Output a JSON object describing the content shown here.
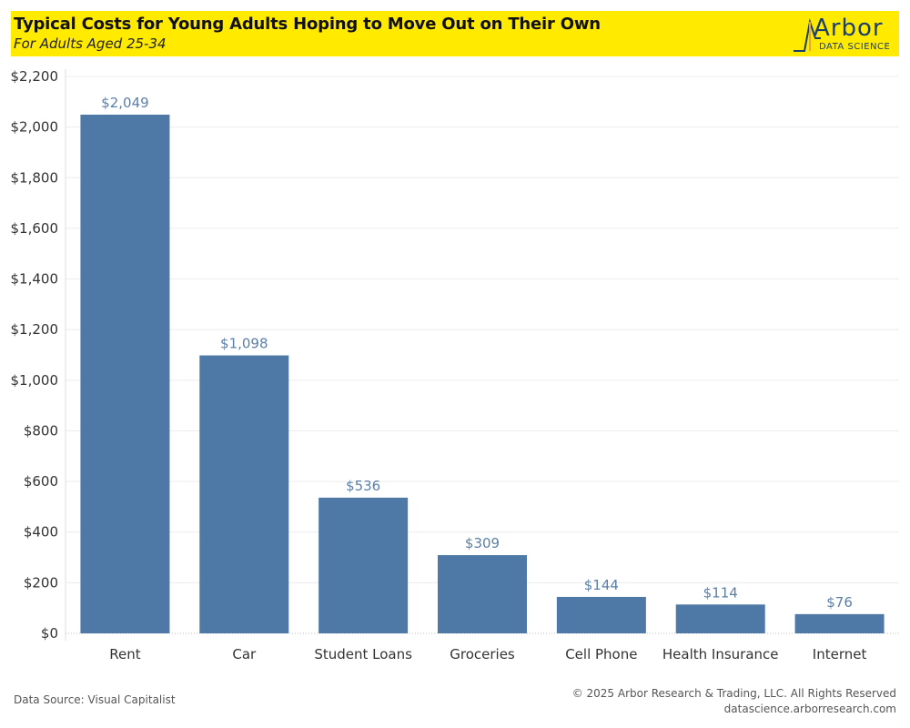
{
  "header": {
    "title": "Typical Costs for Young Adults Hoping to Move Out on Their Own",
    "subtitle": "For Adults Aged 25-34",
    "banner_color": "#ffea00"
  },
  "logo": {
    "word": "Arbor",
    "tagline": "DATA SCIENCE",
    "color": "#1a3f6b",
    "accent": "#e3a63a"
  },
  "chart_data": {
    "type": "bar",
    "title": "Typical Costs for Young Adults Hoping to Move Out on Their Own",
    "subtitle": "For Adults Aged 25-34",
    "xlabel": "",
    "ylabel": "",
    "categories": [
      "Rent",
      "Car",
      "Student Loans",
      "Groceries",
      "Cell Phone",
      "Health Insurance",
      "Internet"
    ],
    "values": [
      2049,
      1098,
      536,
      309,
      144,
      114,
      76
    ],
    "data_labels": [
      "$2,049",
      "$1,098",
      "$536",
      "$309",
      "$144",
      "$114",
      "$76"
    ],
    "ylim": [
      0,
      2200
    ],
    "yticks": [
      0,
      200,
      400,
      600,
      800,
      1000,
      1200,
      1400,
      1600,
      1800,
      2000,
      2200
    ],
    "ytick_labels": [
      "$0",
      "$200",
      "$400",
      "$600",
      "$800",
      "$1,000",
      "$1,200",
      "$1,400",
      "$1,600",
      "$1,800",
      "$2,000",
      "$2,200"
    ],
    "bar_color": "#4e79a7",
    "label_color": "#5b7fa8",
    "grid": true
  },
  "footer": {
    "source": "Data Source: Visual Capitalist",
    "copyright": "© 2025 Arbor Research & Trading, LLC. All Rights Reserved",
    "url": "datascience.arborresearch.com"
  }
}
